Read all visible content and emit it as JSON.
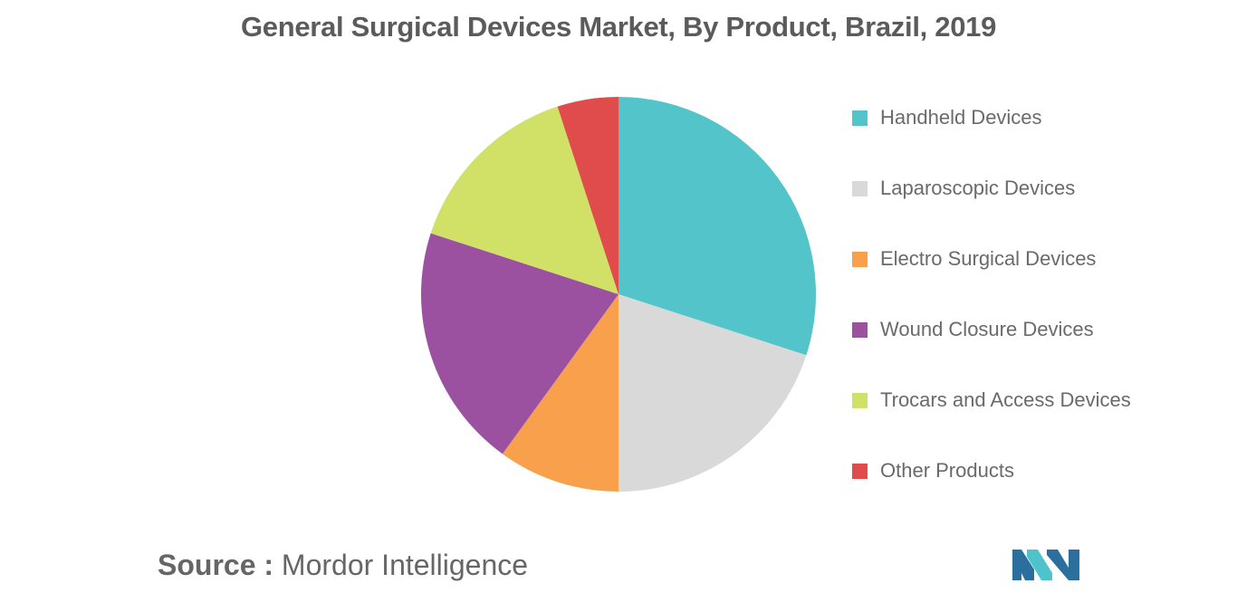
{
  "chart_data": {
    "type": "pie",
    "title": "General Surgical Devices Market, By Product, Brazil, 2019",
    "categories": [
      "Handheld Devices",
      "Laparoscopic Devices",
      "Electro Surgical Devices",
      "Wound Closure Devices",
      "Trocars and Access Devices",
      "Other Products"
    ],
    "values": [
      30,
      20,
      10,
      20,
      15,
      5
    ],
    "colors": [
      "#53c4c9",
      "#d9d9d9",
      "#f9a04c",
      "#9b50a0",
      "#d1e067",
      "#e04b4b"
    ],
    "start": "top",
    "direction": "clockwise",
    "legend_position": "right"
  },
  "source": {
    "label": "Source :",
    "text": "Mordor Intelligence"
  },
  "logo": {
    "icon": "mordor-intelligence-logo",
    "colors": [
      "#2b6f9e",
      "#4fc3cc"
    ]
  }
}
